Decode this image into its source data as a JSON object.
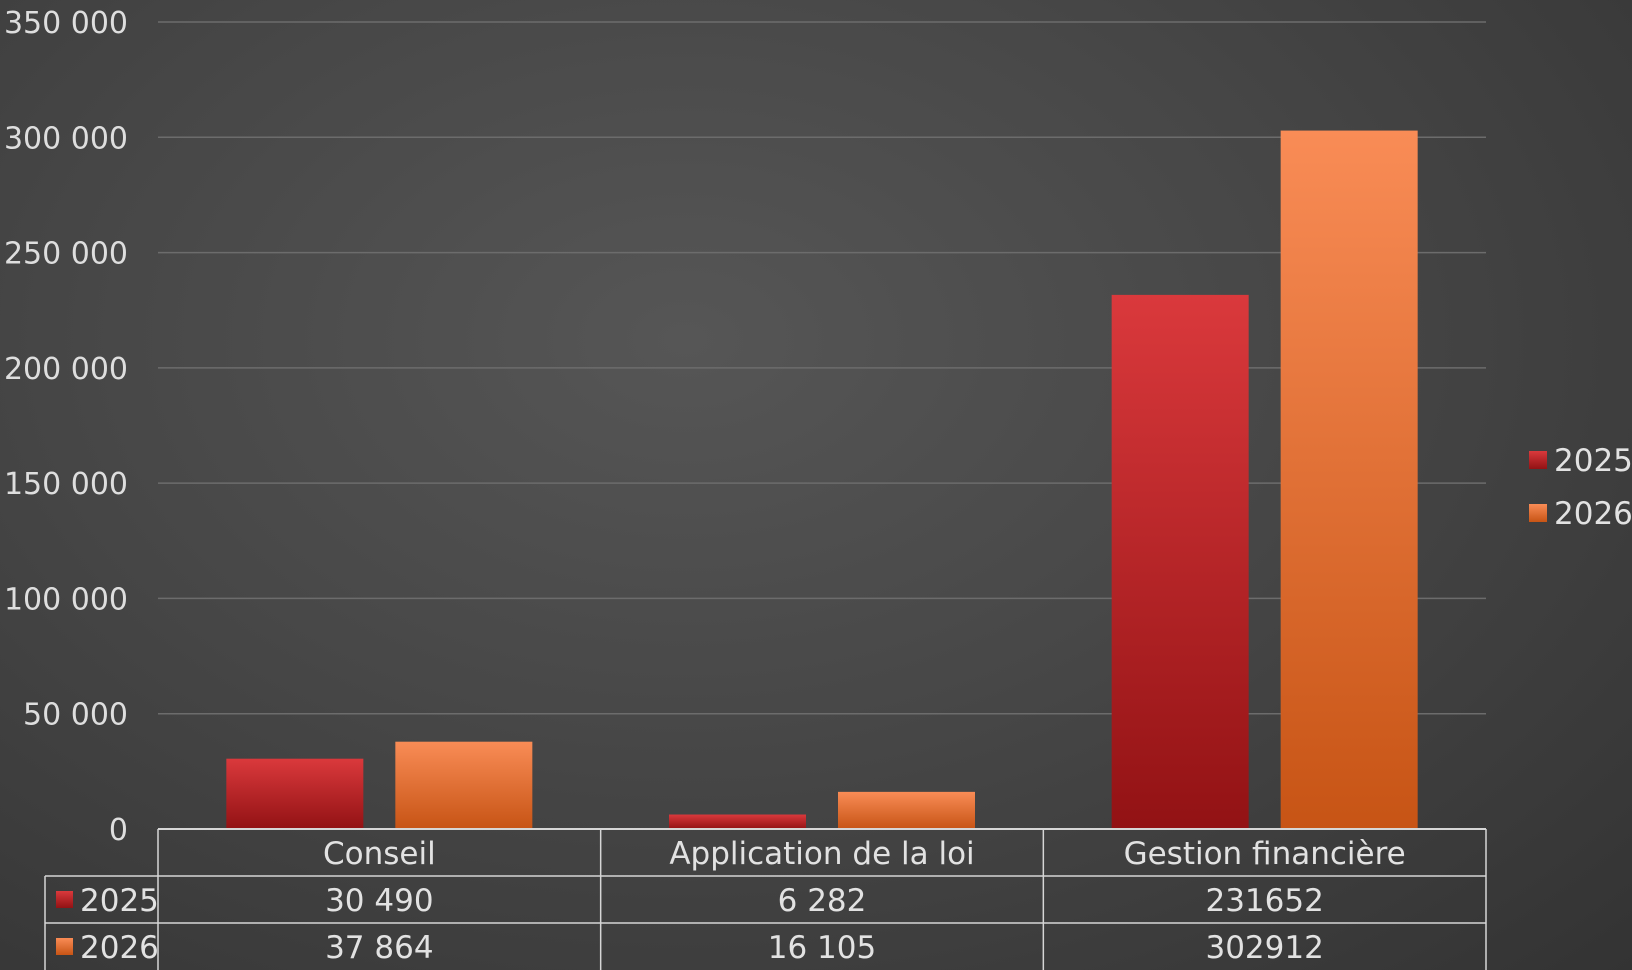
{
  "chart_data": {
    "type": "bar",
    "categories": [
      "Conseil",
      "Application de la loi",
      "Gestion financière"
    ],
    "series": [
      {
        "name": "2025",
        "values": [
          30490,
          6282,
          231652
        ],
        "color": "#c8262a",
        "display": [
          "30 490",
          "6 282",
          "231652"
        ]
      },
      {
        "name": "2026",
        "values": [
          37864,
          16105,
          302912
        ],
        "color": "#f07a3c",
        "display": [
          "37 864",
          "16 105",
          "302912"
        ]
      }
    ],
    "ylim": [
      0,
      350000
    ],
    "yticks": [
      0,
      50000,
      100000,
      150000,
      200000,
      250000,
      300000,
      350000
    ],
    "ytick_labels": [
      "0",
      "50 000",
      "100 000",
      "150 000",
      "200 000",
      "250 000",
      "300 000",
      "350 000"
    ],
    "grid": true,
    "legend": "right",
    "data_table": true
  }
}
